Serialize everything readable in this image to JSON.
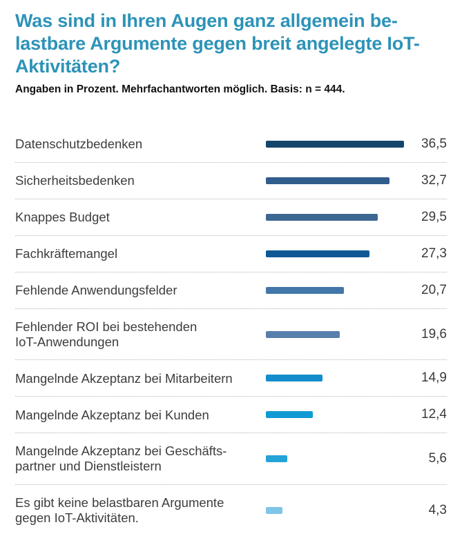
{
  "header": {
    "title": "Was sind in Ihren Augen ganz allgemein be-\nlastbare Argumente gegen breit angelegte IoT-\nAktivitäten?",
    "subtitle": "Angaben in Prozent. Mehrfachantworten möglich. Basis: n = 444."
  },
  "colors": {
    "title_text": "#2d93b8",
    "body_text": "#3d3d3d",
    "divider": "#b3b3b3"
  },
  "chart_data": {
    "type": "bar",
    "orientation": "horizontal",
    "title": "Was sind in Ihren Augen ganz allgemein belastbare Argumente gegen breit angelegte IoT-Aktivitäten?",
    "subtitle": "Angaben in Prozent. Mehrfachantworten möglich. Basis: n = 444.",
    "unit": "percent",
    "xlim": [
      0,
      36.5
    ],
    "grid": false,
    "legend": false,
    "categories": [
      "Datenschutzbedenken",
      "Sicherheitsbedenken",
      "Knappes Budget",
      "Fachkräftemangel",
      "Fehlende Anwendungsfelder",
      "Fehlender ROI bei bestehenden IoT-Anwendungen",
      "Mangelnde Akzeptanz bei Mitarbeitern",
      "Mangelnde Akzeptanz bei Kunden",
      "Mangelnde Akzeptanz bei Geschäftspartner und Dienstleistern",
      "Es gibt keine belastbaren Argumente gegen IoT-Aktivitäten."
    ],
    "display_labels": [
      "Datenschutzbedenken",
      "Sicherheitsbedenken",
      "Knappes Budget",
      "Fachkräftemangel",
      "Fehlende Anwendungsfelder",
      "Fehlender ROI bei bestehenden\nIoT-Anwendungen",
      "Mangelnde Akzeptanz bei Mitarbeitern",
      "Mangelnde Akzeptanz bei Kunden",
      "Mangelnde Akzeptanz bei Geschäfts-\npartner und Dienstleistern",
      "Es gibt keine belastbaren Argumente\ngegen IoT-Aktivitäten."
    ],
    "values": [
      36.5,
      32.7,
      29.5,
      27.3,
      20.7,
      19.6,
      14.9,
      12.4,
      5.6,
      4.3
    ],
    "value_labels": [
      "36,5",
      "32,7",
      "29,5",
      "27,3",
      "20,7",
      "19,6",
      "14,9",
      "12,4",
      "5,6",
      "4,3"
    ],
    "bar_colors": [
      "#14456b",
      "#315d8c",
      "#3d6793",
      "#0f5795",
      "#4377a9",
      "#577fab",
      "#148dcc",
      "#109ad4",
      "#25a2d8",
      "#7ec5e8"
    ]
  }
}
